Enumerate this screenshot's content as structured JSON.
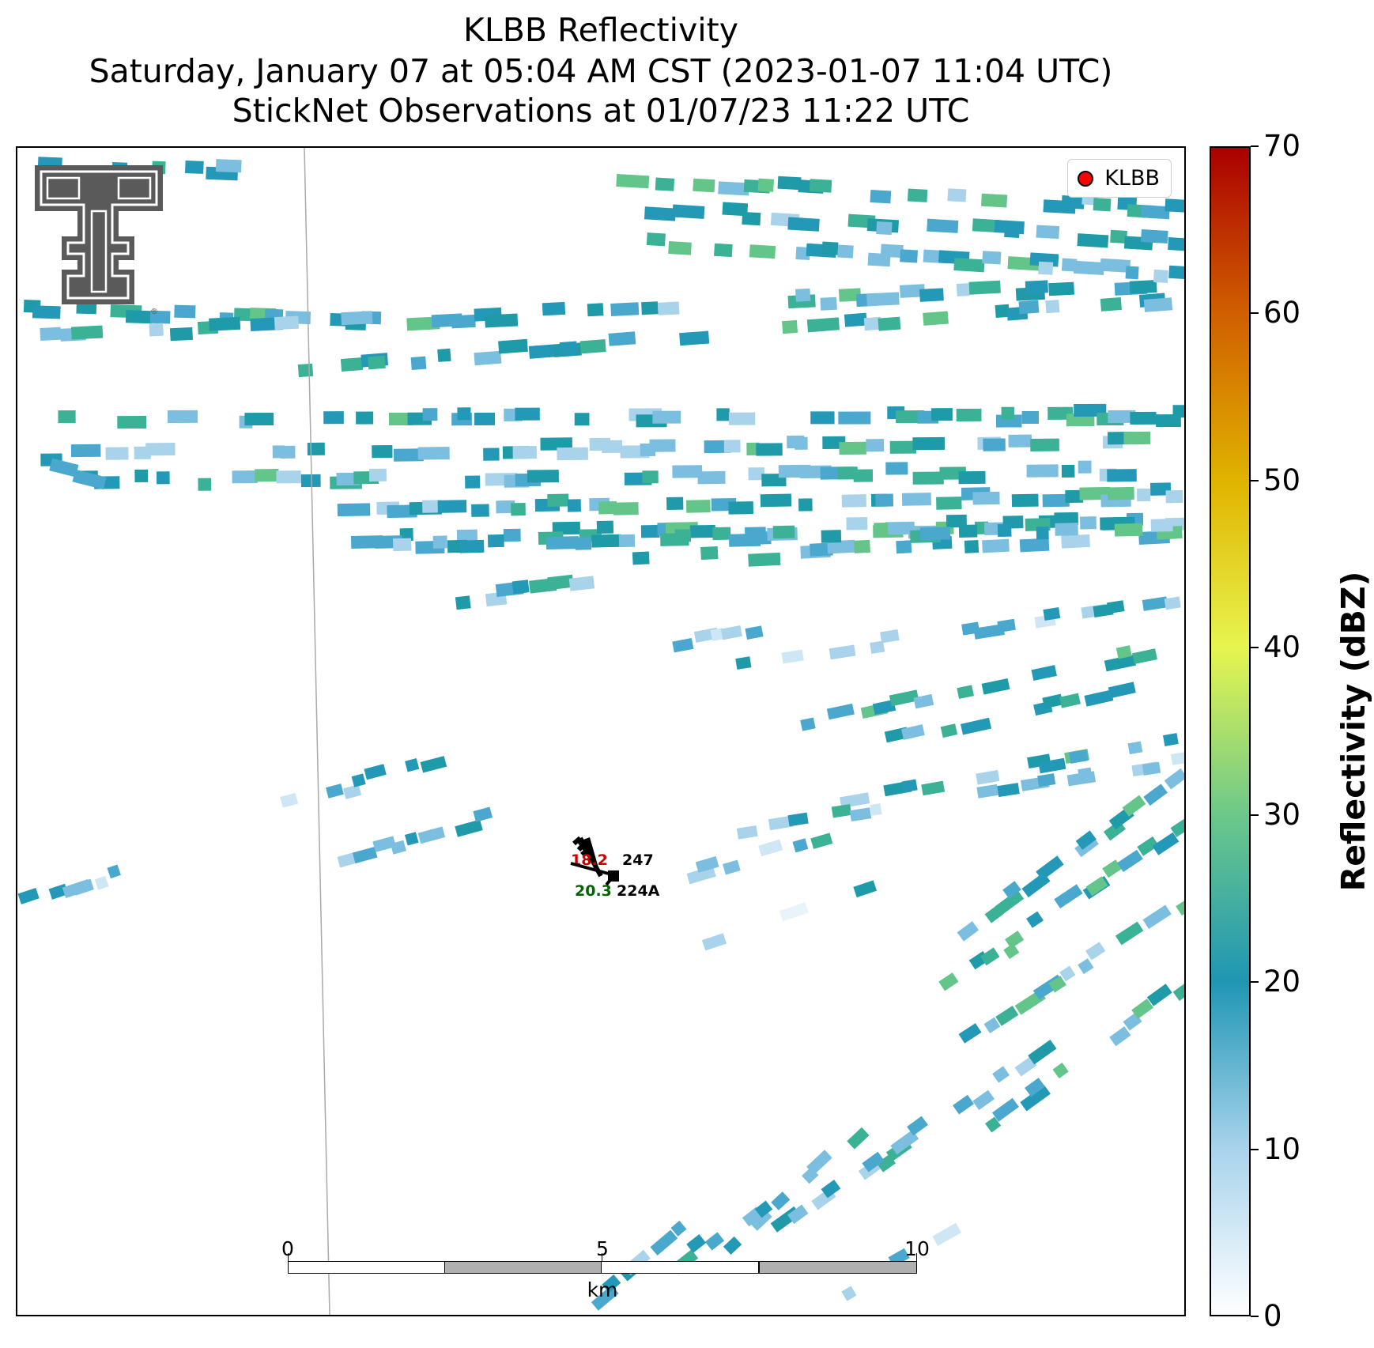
{
  "title": {
    "line1": "KLBB Reflectivity",
    "line2": "Saturday, January 07 at 05:04 AM CST (2023-01-07 11:04 UTC)",
    "line3": "StickNet Observations at 01/07/23 11:22 UTC"
  },
  "legend": {
    "label": "KLBB",
    "marker_color": "#ff0000"
  },
  "logo": {
    "icon": "texas-tech-double-t-logo-icon"
  },
  "stations": [
    {
      "id": "247",
      "temp": "18.2",
      "temp_color": "#cc0000"
    },
    {
      "id": "224A",
      "temp": "20.3",
      "temp_color": "#006400"
    }
  ],
  "scale_bar": {
    "unit": "km",
    "ticks": [
      "0",
      "5",
      "10"
    ]
  },
  "colorbar": {
    "title": "Reflectivity (dBZ)",
    "min": 0,
    "max": 70,
    "ticks": [
      "0",
      "10",
      "20",
      "30",
      "40",
      "50",
      "60",
      "70"
    ],
    "colors": [
      "#ffffff",
      "#a8d3eb",
      "#1f96b4",
      "#6cc88a",
      "#e6f550",
      "#e0b400",
      "#d06000",
      "#aa0000"
    ]
  }
}
